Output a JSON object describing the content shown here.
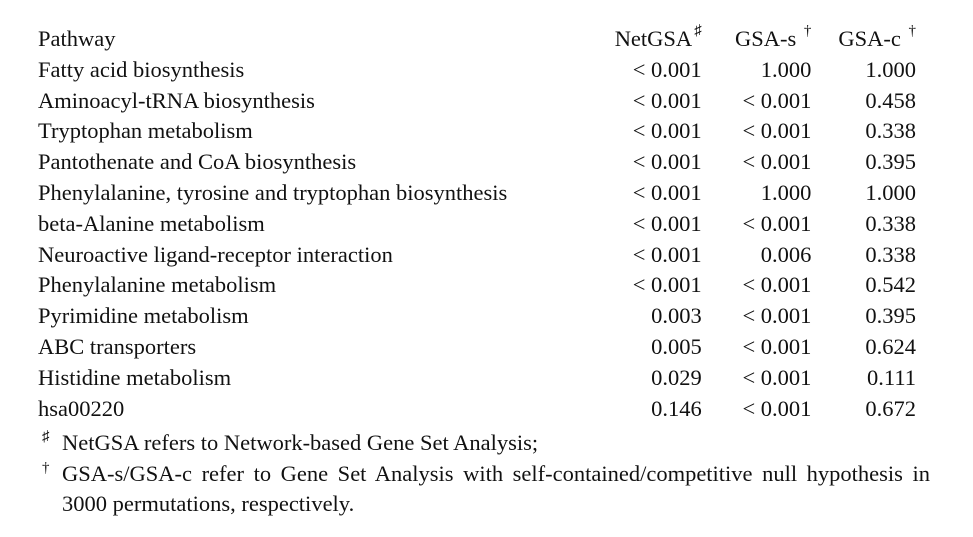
{
  "table": {
    "headers": {
      "pathway": "Pathway",
      "netgsa": "NetGSA",
      "netgsa_mark": "♯",
      "gsa_s": "GSA-s",
      "gsa_s_mark": "†",
      "gsa_c": "GSA-c",
      "gsa_c_mark": "†"
    },
    "rows": [
      {
        "pathway": "Fatty acid biosynthesis",
        "netgsa": "< 0.001",
        "gsa_s": "1.000",
        "gsa_c": "1.000"
      },
      {
        "pathway": "Aminoacyl-tRNA biosynthesis",
        "netgsa": "< 0.001",
        "gsa_s": "< 0.001",
        "gsa_c": "0.458"
      },
      {
        "pathway": "Tryptophan metabolism",
        "netgsa": "< 0.001",
        "gsa_s": "< 0.001",
        "gsa_c": "0.338"
      },
      {
        "pathway": "Pantothenate and CoA biosynthesis",
        "netgsa": "< 0.001",
        "gsa_s": "< 0.001",
        "gsa_c": "0.395"
      },
      {
        "pathway": "Phenylalanine, tyrosine and tryptophan biosynthesis",
        "netgsa": "< 0.001",
        "gsa_s": "1.000",
        "gsa_c": "1.000"
      },
      {
        "pathway": "beta-Alanine metabolism",
        "netgsa": "< 0.001",
        "gsa_s": "< 0.001",
        "gsa_c": "0.338"
      },
      {
        "pathway": "Neuroactive ligand-receptor interaction",
        "netgsa": "< 0.001",
        "gsa_s": "0.006",
        "gsa_c": "0.338"
      },
      {
        "pathway": "Phenylalanine metabolism",
        "netgsa": "< 0.001",
        "gsa_s": "< 0.001",
        "gsa_c": "0.542"
      },
      {
        "pathway": "Pyrimidine metabolism",
        "netgsa": "0.003",
        "gsa_s": "< 0.001",
        "gsa_c": "0.395"
      },
      {
        "pathway": "ABC transporters",
        "netgsa": "0.005",
        "gsa_s": "< 0.001",
        "gsa_c": "0.624"
      },
      {
        "pathway": "Histidine metabolism",
        "netgsa": "0.029",
        "gsa_s": "< 0.001",
        "gsa_c": "0.111"
      },
      {
        "pathway": "hsa00220",
        "netgsa": "0.146",
        "gsa_s": "< 0.001",
        "gsa_c": "0.672"
      }
    ]
  },
  "notes": [
    {
      "mark": "♯",
      "text": "NetGSA refers to Network-based Gene Set Analysis;"
    },
    {
      "mark": "†",
      "text": "GSA-s/GSA-c refer to Gene Set Analysis with self-contained/competitive null hypothesis in 3000 permutations, respectively."
    }
  ]
}
